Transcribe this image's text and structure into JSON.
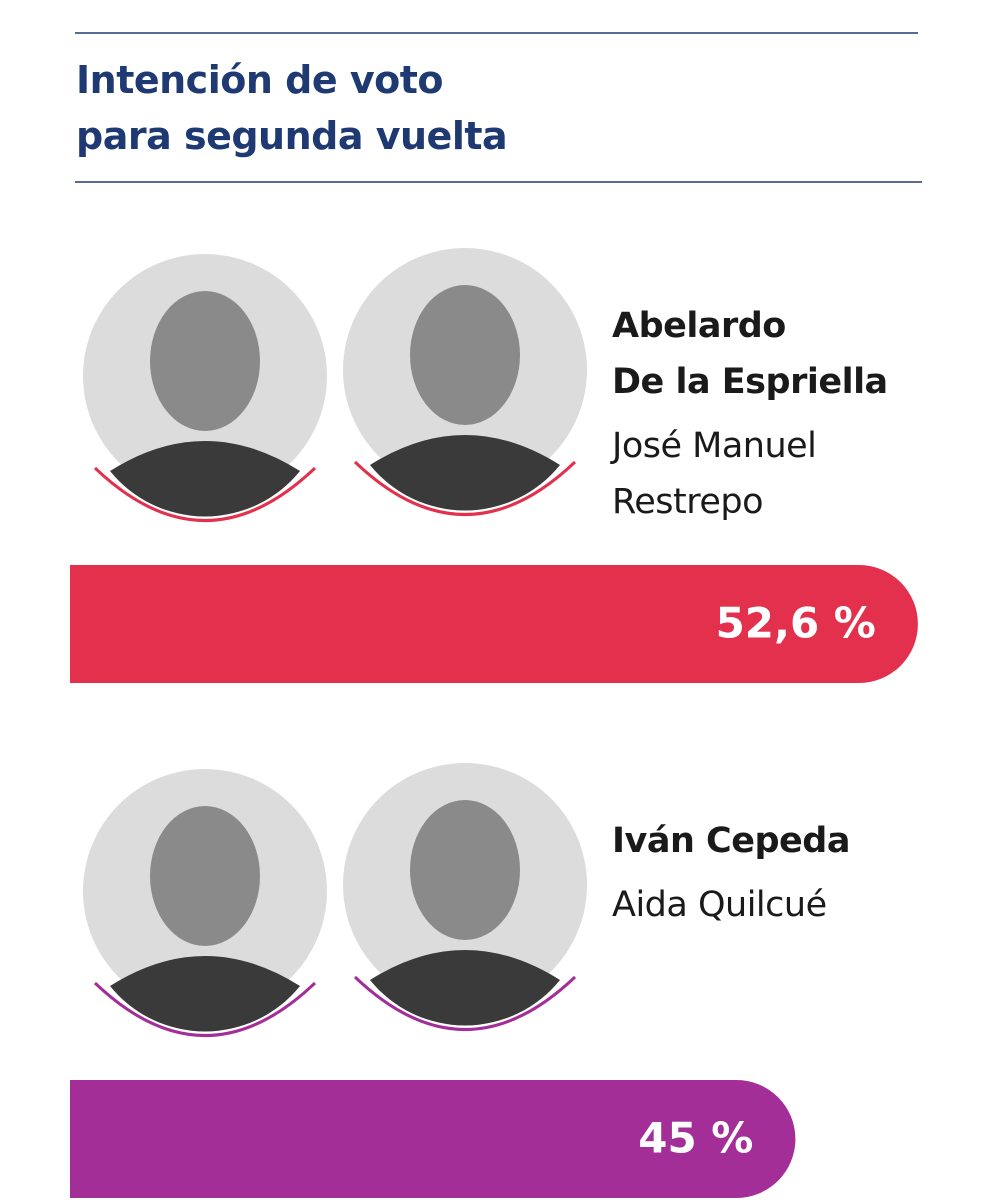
{
  "chart_data": {
    "type": "bar",
    "title": "Intención de voto\npara segunda vuelta",
    "categories": [
      "Abelardo\nDe la Espriella",
      "Iván Cepeda"
    ],
    "running_mates": [
      "José Manuel\nRestrepo",
      "Aida Quilcué"
    ],
    "values": [
      52.6,
      45
    ],
    "value_labels": [
      "52,6 %",
      "45 %"
    ],
    "colors": [
      "#e3304c",
      "#a32e98"
    ]
  }
}
